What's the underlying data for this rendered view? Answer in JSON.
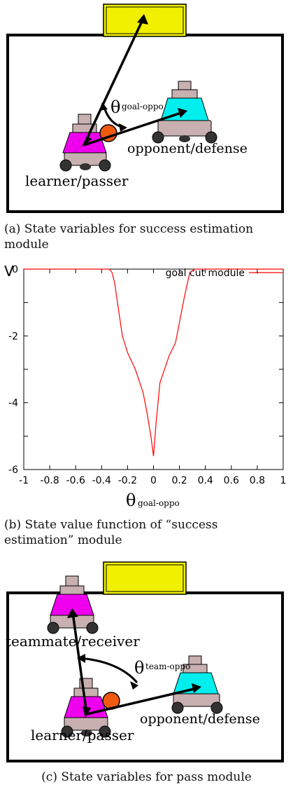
{
  "figure_a": {
    "goal_angle_symbol": "θ",
    "goal_angle_subscript": "goal-oppo",
    "opponent_label": "opponent/defense",
    "learner_label": "learner/passer",
    "caption": "(a) State variables for success estimation module"
  },
  "figure_b": {
    "caption": "(b) State value function of “success estimation” module"
  },
  "figure_c": {
    "team_angle_symbol": "θ",
    "team_angle_subscript": "team-oppo",
    "teammate_label": "teammate/receiver",
    "opponent_label": "opponent/defense",
    "learner_label": "learner/passer",
    "caption": "(c) State variables for pass module"
  },
  "colors": {
    "goal": "#f0f000",
    "learner_body": "#ee00ee",
    "opponent_body": "#00eeee",
    "robot_gray": "#c8b0b0",
    "ball": "#f05a10",
    "curve": "#ff0000"
  },
  "chart_data": {
    "type": "line",
    "title": "",
    "ylabel": "V",
    "xlabel_symbol": "θ",
    "xlabel_subscript": "goal-oppo",
    "xlim": [
      -1,
      1
    ],
    "ylim": [
      -6,
      0
    ],
    "xticks": [
      "-1",
      "-0.8",
      "-0.6",
      "-0.4",
      "-0.2",
      "0",
      "0.2",
      "0.4",
      "0.6",
      "0.8",
      "1"
    ],
    "yticks": [
      "0",
      "-2",
      "-4",
      "-6"
    ],
    "legend": "top-right",
    "grid": false,
    "series": [
      {
        "name": "goal cut module",
        "color": "#ff0000",
        "x": [
          -1,
          -0.5,
          -0.34,
          -0.32,
          -0.3,
          -0.27,
          -0.24,
          -0.2,
          -0.14,
          -0.08,
          -0.05,
          -0.02,
          -0.01,
          0,
          0.02,
          0.05,
          0.12,
          0.17,
          0.24,
          0.28,
          0.32,
          0.35,
          0.5,
          1
        ],
        "y": [
          0,
          0,
          0,
          -0.1,
          -0.4,
          -1.2,
          -2.0,
          -2.5,
          -3.0,
          -3.7,
          -4.3,
          -5.0,
          -5.3,
          -5.6,
          -4.6,
          -3.4,
          -2.6,
          -2.2,
          -0.8,
          -0.1,
          0,
          0,
          0,
          0
        ]
      }
    ]
  }
}
